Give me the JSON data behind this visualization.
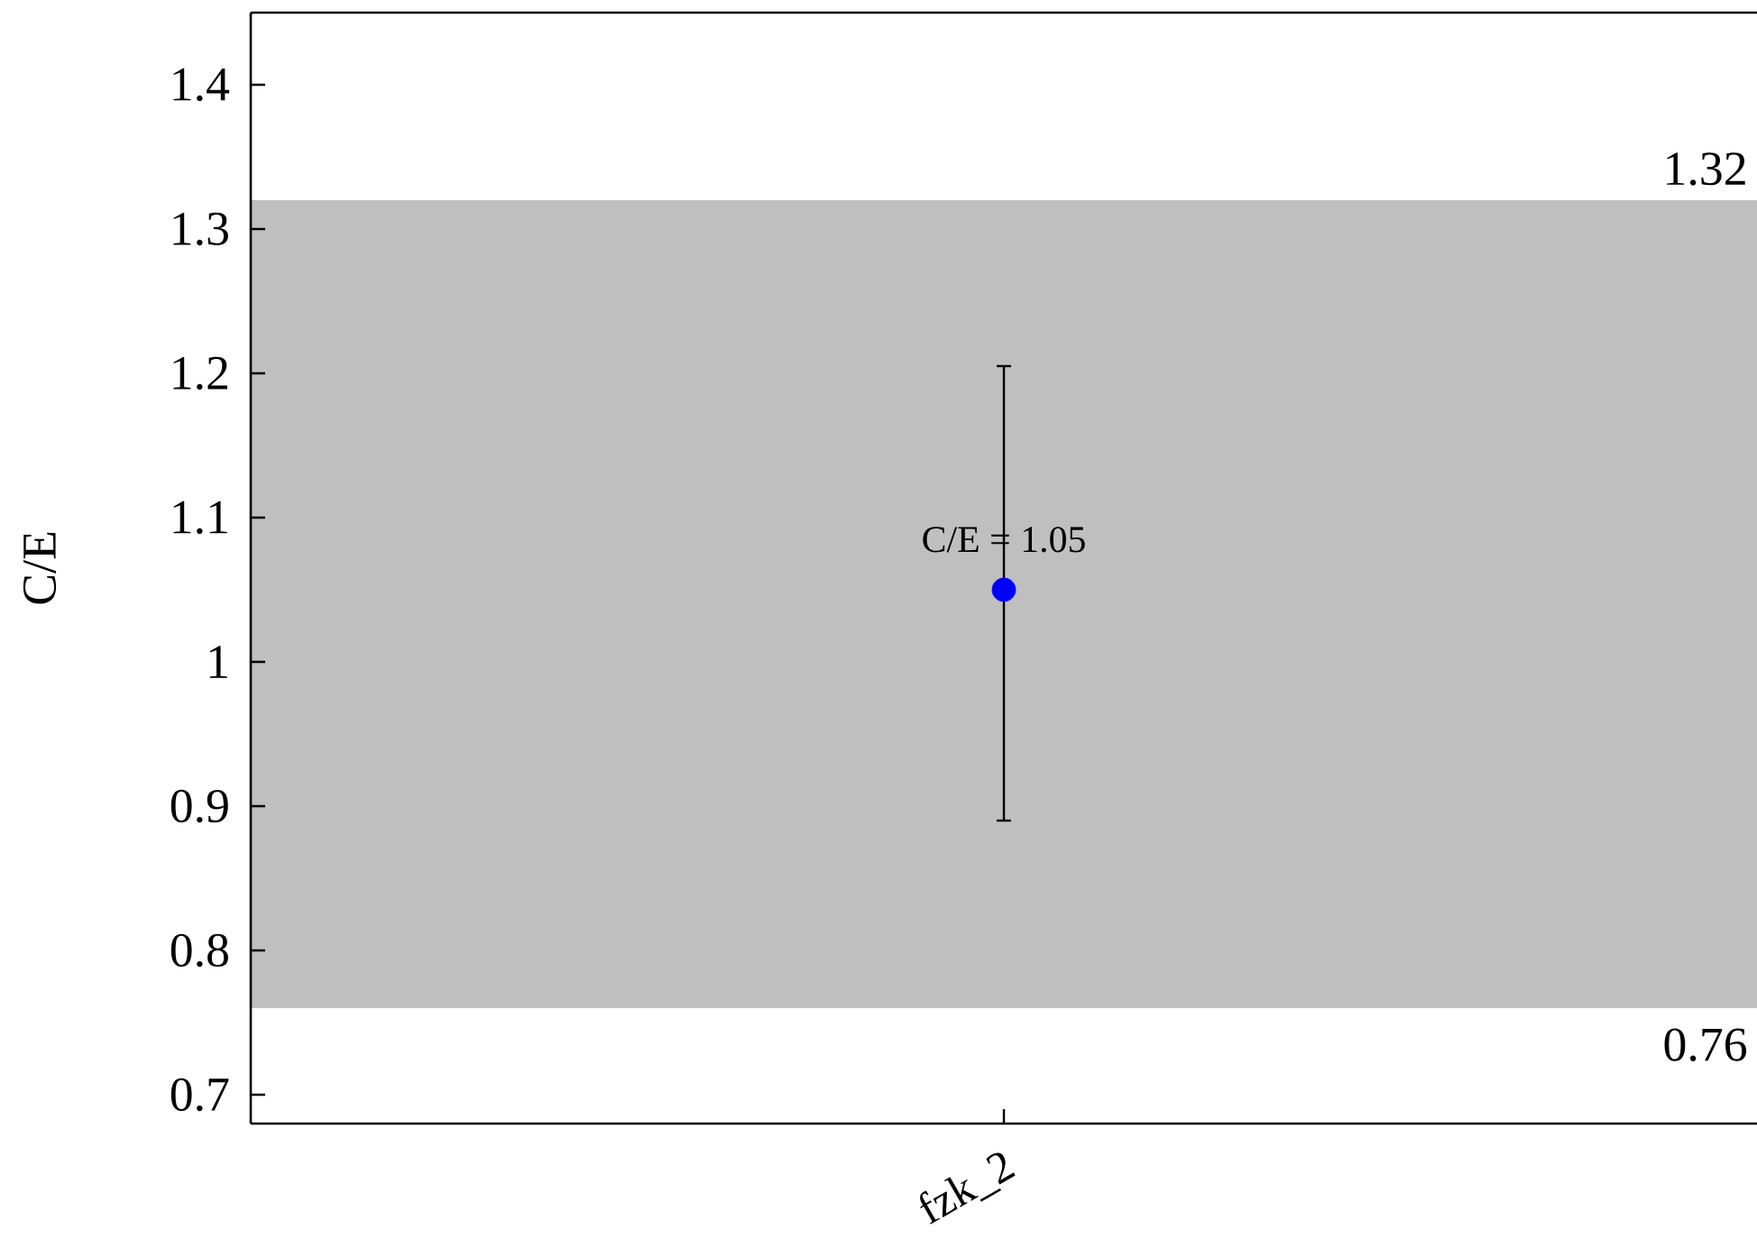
{
  "chart_data": {
    "type": "scatter",
    "ylabel": "C/E",
    "categories": [
      "fzk_2"
    ],
    "values": [
      1.05
    ],
    "errors": [
      [
        0.89,
        1.205
      ]
    ],
    "value_labels": [
      "C/E = 1.05"
    ],
    "color": "#0000ff",
    "marker": "circle",
    "ylim": [
      0.68,
      1.45
    ],
    "yticks": [
      0.7,
      0.8,
      0.9,
      1,
      1.1,
      1.2,
      1.3,
      1.4
    ],
    "bands": [
      {
        "axis": "y",
        "from": 0.76,
        "to": 1.32,
        "color": "#bfbfbf"
      }
    ],
    "annotations": [
      {
        "text": "1.32",
        "y": 1.32
      },
      {
        "text": "0.76",
        "y": 0.76
      }
    ]
  }
}
